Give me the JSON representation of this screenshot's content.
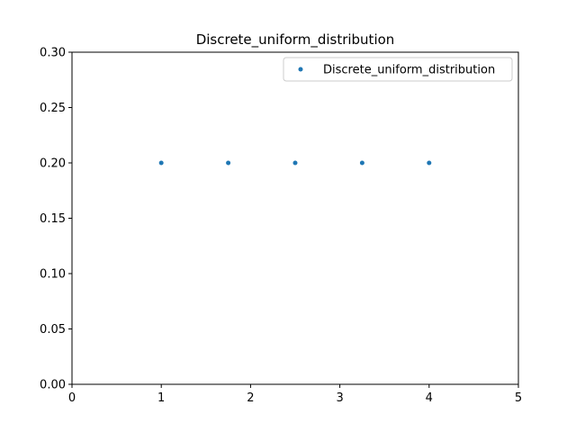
{
  "chart_data": {
    "type": "scatter",
    "title": "Discrete_uniform_distribution",
    "xlabel": "",
    "ylabel": "",
    "xlim": [
      0,
      5
    ],
    "ylim": [
      0,
      0.3
    ],
    "x_ticks": [
      0,
      1,
      2,
      3,
      4,
      5
    ],
    "x_tick_labels": [
      "0",
      "1",
      "2",
      "3",
      "4",
      "5"
    ],
    "y_ticks": [
      0,
      0.05,
      0.1,
      0.15,
      0.2,
      0.25,
      0.3
    ],
    "y_tick_labels": [
      "0.00",
      "0.05",
      "0.10",
      "0.15",
      "0.20",
      "0.25",
      "0.30"
    ],
    "grid": false,
    "legend_position": "top-right",
    "series": [
      {
        "name": "Discrete_uniform_distribution",
        "color": "#1f77b4",
        "x": [
          1,
          1.75,
          2.5,
          3.25,
          4
        ],
        "y": [
          0.2,
          0.2,
          0.2,
          0.2,
          0.2
        ]
      }
    ]
  }
}
